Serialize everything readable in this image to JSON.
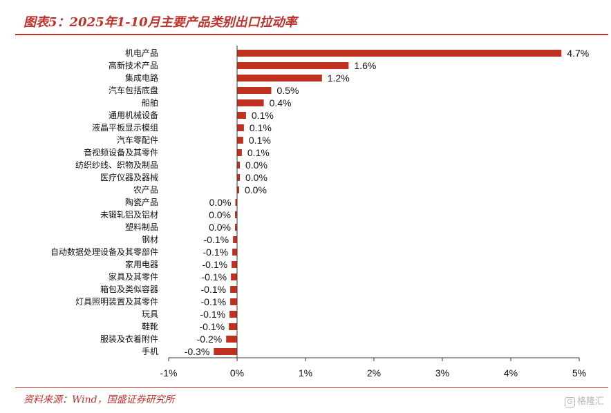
{
  "header": {
    "title": "图表5：2025年1-10月主要产品类别出口拉动率"
  },
  "footer": {
    "source": "资料来源：Wind，国盛证券研究所",
    "watermark_icon": "G",
    "watermark_text": "格隆汇"
  },
  "chart_data": {
    "type": "bar",
    "orientation": "horizontal",
    "title": "",
    "xlabel": "",
    "ylabel": "",
    "xlim": [
      -1,
      5
    ],
    "x_ticks": [
      "-1%",
      "0%",
      "1%",
      "2%",
      "3%",
      "4%",
      "5%"
    ],
    "grid": false,
    "bar_color": "#c0311f",
    "categories": [
      "机电产品",
      "高新技术产品",
      "集成电路",
      "汽车包括底盘",
      "船舶",
      "通用机械设备",
      "液晶平板显示模组",
      "汽车零配件",
      "音视频设备及其零件",
      "纺织纱线、织物及制品",
      "医疗仪器及器械",
      "农产品",
      "陶瓷产品",
      "未锻轧铝及铝材",
      "塑料制品",
      "钢材",
      "自动数据处理设备及其零部件",
      "家用电器",
      "家具及其零件",
      "箱包及类似容器",
      "灯具照明装置及其零件",
      "玩具",
      "鞋靴",
      "服装及衣着附件",
      "手机"
    ],
    "values": [
      4.74,
      1.63,
      1.24,
      0.5,
      0.39,
      0.13,
      0.1,
      0.09,
      0.07,
      0.04,
      0.04,
      0.03,
      -0.01,
      -0.03,
      -0.03,
      -0.06,
      -0.07,
      -0.08,
      -0.09,
      -0.1,
      -0.1,
      -0.11,
      -0.12,
      -0.16,
      -0.34
    ],
    "value_labels": [
      "4.7%",
      "1.6%",
      "1.2%",
      "0.5%",
      "0.4%",
      "0.1%",
      "0.1%",
      "0.1%",
      "0.1%",
      "0.0%",
      "0.0%",
      "0.0%",
      "0.0%",
      "0.0%",
      "0.0%",
      "-0.1%",
      "-0.1%",
      "-0.1%",
      "-0.1%",
      "-0.1%",
      "-0.1%",
      "-0.1%",
      "-0.1%",
      "-0.2%",
      "-0.3%"
    ]
  }
}
